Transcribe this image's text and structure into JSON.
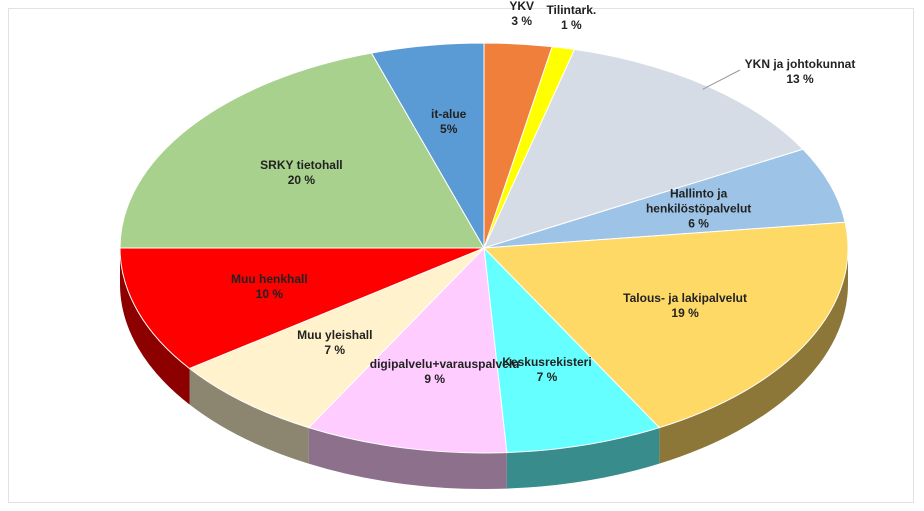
{
  "chart_data": {
    "type": "pie3d",
    "categories": [
      "YKV",
      "Tilintark.",
      "YKN ja johtokunnat",
      "Hallinto ja henkilöstöpalvelut",
      "Talous- ja lakipalvelut",
      "Keskusrekisteri",
      "digipalvelu+varauspalvelu",
      "Muu yleishall",
      "Muu henkhall",
      "SRKY tietohall",
      "it-alue"
    ],
    "values": [
      3,
      1,
      13,
      6,
      19,
      7,
      9,
      7,
      10,
      20,
      5
    ],
    "value_labels": [
      "3 %",
      "1 %",
      "13 %",
      "6 %",
      "19 %",
      "7 %",
      "9 %",
      "7 %",
      "10 %",
      "20 %",
      "5%"
    ],
    "colors": [
      "#f07f3c",
      "#ffff00",
      "#d6dce5",
      "#9dc3e6",
      "#ffd966",
      "#66ffff",
      "#ffccff",
      "#fff2cc",
      "#ff0000",
      "#a9d18e",
      "#5b9bd5"
    ]
  }
}
